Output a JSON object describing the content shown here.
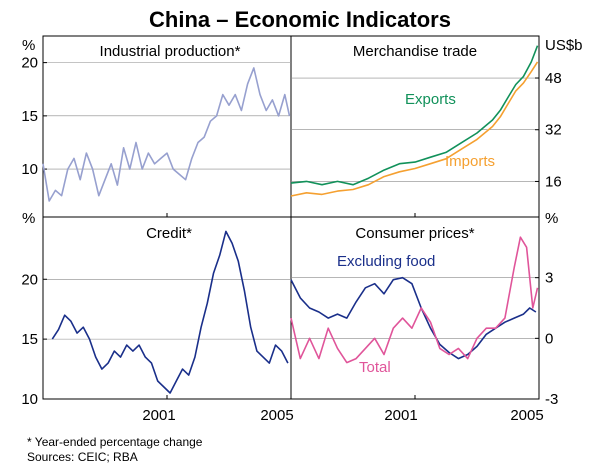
{
  "colors": {
    "industrial": "#97a0cf",
    "credit": "#1a2f8a",
    "exports": "#11915a",
    "imports": "#f5a030",
    "excluding_food": "#1a2f8a",
    "total": "#e0559a",
    "frame": "#000000",
    "grid": "#8a8a8a"
  },
  "chart_data": {
    "title": "China – Economic Indicators",
    "type": "line",
    "x_tick_labels": [
      "2001",
      "2005",
      "2001",
      "2005"
    ],
    "footnotes": [
      "*   Year-ended percentage change",
      "Sources: CEIC; RBA"
    ],
    "panels": [
      {
        "id": "industrial",
        "title": "Industrial production*",
        "unit": "%",
        "xlim": [
          1997.0,
          2005.0
        ],
        "ylim": [
          5.5,
          22.5
        ],
        "ticks": [
          10,
          15,
          20
        ],
        "tick_labels": [
          "10",
          "15",
          "20"
        ],
        "series": [
          {
            "name": "Industrial production",
            "color_key": "industrial",
            "x": [
              1997.0,
              1997.2,
              1997.4,
              1997.6,
              1997.8,
              1998.0,
              1998.2,
              1998.4,
              1998.6,
              1998.8,
              1999.0,
              1999.2,
              1999.4,
              1999.6,
              1999.8,
              2000.0,
              2000.2,
              2000.4,
              2000.6,
              2000.8,
              2001.0,
              2001.2,
              2001.4,
              2001.6,
              2001.8,
              2002.0,
              2002.2,
              2002.4,
              2002.6,
              2002.8,
              2003.0,
              2003.2,
              2003.4,
              2003.6,
              2003.8,
              2004.0,
              2004.2,
              2004.4,
              2004.6,
              2004.8,
              2004.95
            ],
            "y": [
              10.5,
              7.0,
              8.0,
              7.5,
              10.0,
              11.0,
              9.0,
              11.5,
              10.0,
              7.5,
              9.0,
              10.5,
              8.5,
              12.0,
              10.0,
              12.5,
              10.0,
              11.5,
              10.5,
              11.0,
              11.5,
              10.0,
              9.5,
              9.0,
              11.0,
              12.5,
              13.0,
              14.5,
              15.0,
              17.0,
              16.0,
              17.0,
              15.5,
              18.0,
              19.5,
              17.0,
              15.5,
              16.5,
              15.0,
              17.0,
              15.0
            ]
          }
        ]
      },
      {
        "id": "trade",
        "title": "Merchandise trade",
        "unit": "US$b",
        "xlim": [
          1997.0,
          2005.0
        ],
        "ylim": [
          5.0,
          61.0
        ],
        "ticks": [
          16,
          32,
          48
        ],
        "tick_labels": [
          "16",
          "32",
          "48"
        ],
        "series": [
          {
            "name": "Exports",
            "label": "Exports",
            "color_key": "exports",
            "x": [
              1997.0,
              1997.5,
              1998.0,
              1998.5,
              1999.0,
              1999.5,
              2000.0,
              2000.5,
              2001.0,
              2001.5,
              2002.0,
              2002.5,
              2003.0,
              2003.5,
              2003.75,
              2004.0,
              2004.25,
              2004.5,
              2004.75,
              2004.95
            ],
            "y": [
              15.5,
              16.0,
              15.0,
              16.0,
              15.0,
              17.0,
              19.5,
              21.5,
              22.0,
              23.5,
              25.0,
              28.0,
              31.0,
              35.0,
              38.0,
              42.0,
              46.0,
              48.5,
              53.0,
              58.0
            ]
          },
          {
            "name": "Imports",
            "label": "Imports",
            "color_key": "imports",
            "x": [
              1997.0,
              1997.5,
              1998.0,
              1998.5,
              1999.0,
              1999.5,
              2000.0,
              2000.5,
              2001.0,
              2001.5,
              2002.0,
              2002.5,
              2003.0,
              2003.5,
              2003.75,
              2004.0,
              2004.25,
              2004.5,
              2004.75,
              2004.95
            ],
            "y": [
              11.5,
              12.5,
              12.0,
              13.0,
              13.5,
              15.0,
              17.5,
              19.0,
              20.0,
              21.5,
              23.0,
              26.0,
              29.0,
              33.0,
              36.0,
              40.0,
              44.0,
              46.5,
              50.0,
              53.0
            ]
          }
        ]
      },
      {
        "id": "credit",
        "title": "Credit*",
        "unit": "%",
        "xlim": [
          1997.0,
          2005.0
        ],
        "ylim": [
          10.0,
          25.2
        ],
        "ticks": [
          10,
          15,
          20
        ],
        "tick_labels": [
          "10",
          "15",
          "20"
        ],
        "series": [
          {
            "name": "Credit",
            "color_key": "credit",
            "x": [
              1997.3,
              1997.5,
              1997.7,
              1997.9,
              1998.1,
              1998.3,
              1998.5,
              1998.7,
              1998.9,
              1999.1,
              1999.3,
              1999.5,
              1999.7,
              1999.9,
              2000.1,
              2000.3,
              2000.5,
              2000.7,
              2000.9,
              2001.1,
              2001.3,
              2001.5,
              2001.7,
              2001.9,
              2002.1,
              2002.3,
              2002.5,
              2002.7,
              2002.9,
              2003.1,
              2003.3,
              2003.5,
              2003.7,
              2003.9,
              2004.1,
              2004.3,
              2004.5,
              2004.7,
              2004.9
            ],
            "y": [
              15.0,
              15.8,
              17.0,
              16.5,
              15.5,
              16.0,
              15.0,
              13.5,
              12.5,
              13.0,
              14.0,
              13.5,
              14.5,
              14.0,
              14.5,
              13.5,
              13.0,
              11.5,
              11.0,
              10.5,
              11.5,
              12.5,
              12.0,
              13.5,
              16.0,
              18.0,
              20.5,
              22.0,
              24.0,
              23.0,
              21.5,
              19.0,
              16.0,
              14.0,
              13.5,
              13.0,
              14.5,
              14.0,
              13.0
            ]
          }
        ]
      },
      {
        "id": "cpi",
        "title": "Consumer prices*",
        "unit": "%",
        "xlim": [
          1997.0,
          2005.0
        ],
        "ylim": [
          -3.0,
          6.0
        ],
        "ticks": [
          -3,
          0,
          3
        ],
        "tick_labels": [
          "-3",
          "0",
          "3"
        ],
        "series": [
          {
            "name": "Excluding food",
            "label": "Excluding food",
            "color_key": "excluding_food",
            "x": [
              1997.0,
              1997.3,
              1997.6,
              1997.9,
              1998.2,
              1998.5,
              1998.8,
              1999.1,
              1999.4,
              1999.7,
              2000.0,
              2000.3,
              2000.6,
              2000.9,
              2001.2,
              2001.5,
              2001.8,
              2002.1,
              2002.4,
              2002.7,
              2003.0,
              2003.3,
              2003.6,
              2003.9,
              2004.2,
              2004.5,
              2004.7,
              2004.9
            ],
            "y": [
              2.9,
              2.0,
              1.5,
              1.3,
              1.0,
              1.2,
              1.0,
              1.8,
              2.5,
              2.7,
              2.2,
              2.9,
              3.0,
              2.7,
              1.5,
              0.5,
              -0.3,
              -0.7,
              -1.0,
              -0.8,
              -0.4,
              0.2,
              0.5,
              0.8,
              1.0,
              1.2,
              1.5,
              1.3
            ]
          },
          {
            "name": "Total",
            "label": "Total",
            "color_key": "total",
            "x": [
              1997.0,
              1997.3,
              1997.6,
              1997.9,
              1998.2,
              1998.5,
              1998.8,
              1999.1,
              1999.4,
              1999.7,
              2000.0,
              2000.3,
              2000.6,
              2000.9,
              2001.2,
              2001.5,
              2001.8,
              2002.1,
              2002.4,
              2002.7,
              2003.0,
              2003.3,
              2003.6,
              2003.9,
              2004.2,
              2004.4,
              2004.6,
              2004.8,
              2004.95
            ],
            "y": [
              1.0,
              -1.0,
              0.0,
              -1.0,
              0.5,
              -0.5,
              -1.2,
              -1.0,
              -0.5,
              0.0,
              -0.8,
              0.5,
              1.0,
              0.5,
              1.5,
              0.8,
              -0.5,
              -0.8,
              -0.5,
              -1.0,
              0.0,
              0.5,
              0.5,
              1.0,
              3.5,
              5.0,
              4.5,
              1.5,
              2.5
            ]
          }
        ]
      }
    ]
  }
}
